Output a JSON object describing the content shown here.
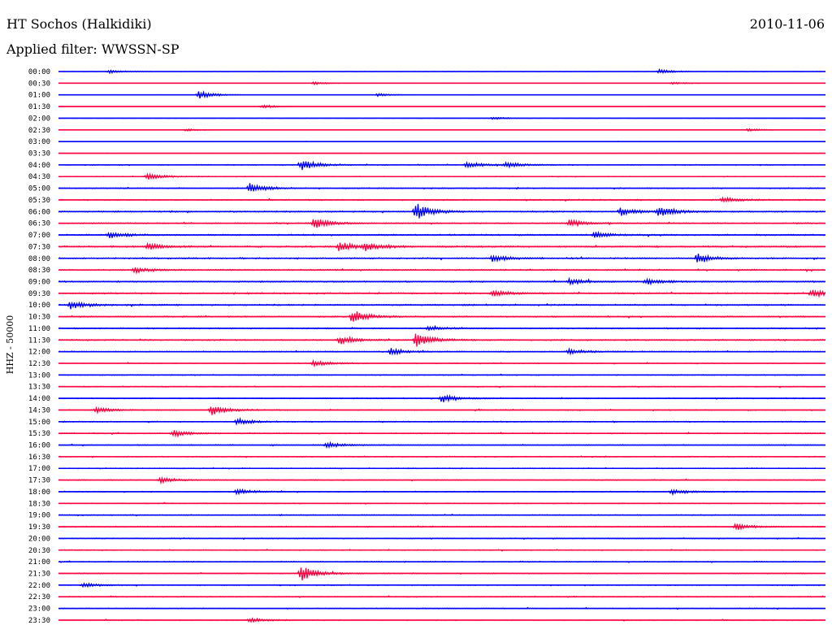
{
  "header": {
    "title": "HT Sochos (Halkidiki)",
    "date": "2010-11-06",
    "filter": "Applied filter: WWSSN-SP",
    "channel": "HHZ - 50000"
  },
  "colors": {
    "trace_a": "#0000ff",
    "trace_b": "#ff0040",
    "text": "#000000",
    "background": "#ffffff"
  },
  "chart_data": {
    "type": "line",
    "title": "HT Sochos (Halkidiki)",
    "subtitle": "Applied filter: WWSSN-SP",
    "ylabel": "HHZ - 50000",
    "row_labels": [
      "00:00",
      "00:30",
      "01:00",
      "01:30",
      "02:00",
      "02:30",
      "03:00",
      "03:30",
      "04:00",
      "04:30",
      "05:00",
      "05:30",
      "06:00",
      "06:30",
      "07:00",
      "07:30",
      "08:00",
      "08:30",
      "09:00",
      "09:30",
      "10:00",
      "10:30",
      "11:00",
      "11:30",
      "12:00",
      "12:30",
      "13:00",
      "13:30",
      "14:00",
      "14:30",
      "15:00",
      "15:30",
      "16:00",
      "16:30",
      "17:00",
      "17:30",
      "18:00",
      "18:30",
      "19:00",
      "19:30",
      "20:00",
      "20:30",
      "21:00",
      "21:30",
      "22:00",
      "22:30",
      "23:00",
      "23:30"
    ],
    "row_minutes": 30,
    "alternating_colors": [
      "#0000ff",
      "#ff0040"
    ],
    "noise_level": [
      0.1,
      0.1,
      0.12,
      0.08,
      0.1,
      0.1,
      0.1,
      0.15,
      0.4,
      0.3,
      0.45,
      0.5,
      0.6,
      0.55,
      0.6,
      0.65,
      0.65,
      0.55,
      0.6,
      0.6,
      0.6,
      0.55,
      0.5,
      0.55,
      0.5,
      0.4,
      0.4,
      0.4,
      0.45,
      0.45,
      0.45,
      0.45,
      0.4,
      0.4,
      0.4,
      0.4,
      0.4,
      0.4,
      0.4,
      0.4,
      0.4,
      0.4,
      0.4,
      0.4,
      0.4,
      0.4,
      0.4,
      0.4
    ],
    "events": [
      {
        "row": 0,
        "minute": 2,
        "amp": 0.5
      },
      {
        "row": 0,
        "minute": 23.5,
        "amp": 0.6
      },
      {
        "row": 1,
        "minute": 10,
        "amp": 0.4
      },
      {
        "row": 1,
        "minute": 24,
        "amp": 0.35
      },
      {
        "row": 2,
        "minute": 5.5,
        "amp": 1.2
      },
      {
        "row": 2,
        "minute": 12.5,
        "amp": 0.4
      },
      {
        "row": 3,
        "minute": 8,
        "amp": 0.5
      },
      {
        "row": 4,
        "minute": 17,
        "amp": 0.4
      },
      {
        "row": 5,
        "minute": 5,
        "amp": 0.35
      },
      {
        "row": 5,
        "minute": 27,
        "amp": 0.4
      },
      {
        "row": 8,
        "minute": 9.5,
        "amp": 1.6
      },
      {
        "row": 8,
        "minute": 16,
        "amp": 0.9
      },
      {
        "row": 8,
        "minute": 17.5,
        "amp": 0.8
      },
      {
        "row": 9,
        "minute": 3.5,
        "amp": 0.9
      },
      {
        "row": 10,
        "minute": 7.5,
        "amp": 1.5
      },
      {
        "row": 11,
        "minute": 26,
        "amp": 0.9
      },
      {
        "row": 12,
        "minute": 14,
        "amp": 2.5
      },
      {
        "row": 12,
        "minute": 22,
        "amp": 1.2
      },
      {
        "row": 12,
        "minute": 23.5,
        "amp": 1.6
      },
      {
        "row": 13,
        "minute": 10,
        "amp": 1.5
      },
      {
        "row": 13,
        "minute": 20,
        "amp": 1.0
      },
      {
        "row": 14,
        "minute": 2,
        "amp": 1.0
      },
      {
        "row": 14,
        "minute": 21,
        "amp": 0.9
      },
      {
        "row": 15,
        "minute": 3.5,
        "amp": 1.0
      },
      {
        "row": 15,
        "minute": 11,
        "amp": 1.4
      },
      {
        "row": 15,
        "minute": 12,
        "amp": 1.3
      },
      {
        "row": 16,
        "minute": 17,
        "amp": 1.0
      },
      {
        "row": 16,
        "minute": 25,
        "amp": 1.5
      },
      {
        "row": 17,
        "minute": 3,
        "amp": 0.8
      },
      {
        "row": 18,
        "minute": 20,
        "amp": 0.9
      },
      {
        "row": 18,
        "minute": 23,
        "amp": 0.8
      },
      {
        "row": 19,
        "minute": 17,
        "amp": 0.9
      },
      {
        "row": 19,
        "minute": 29.5,
        "amp": 1.2
      },
      {
        "row": 20,
        "minute": 0.5,
        "amp": 1.2
      },
      {
        "row": 21,
        "minute": 11.5,
        "amp": 2.0
      },
      {
        "row": 22,
        "minute": 14.5,
        "amp": 0.8
      },
      {
        "row": 23,
        "minute": 11,
        "amp": 1.2
      },
      {
        "row": 23,
        "minute": 14,
        "amp": 2.0
      },
      {
        "row": 24,
        "minute": 13,
        "amp": 1.0
      },
      {
        "row": 24,
        "minute": 20,
        "amp": 0.8
      },
      {
        "row": 25,
        "minute": 10,
        "amp": 0.8
      },
      {
        "row": 28,
        "minute": 15,
        "amp": 1.2
      },
      {
        "row": 29,
        "minute": 6,
        "amp": 1.5
      },
      {
        "row": 29,
        "minute": 1.5,
        "amp": 0.8
      },
      {
        "row": 30,
        "minute": 7,
        "amp": 1.0
      },
      {
        "row": 31,
        "minute": 4.5,
        "amp": 1.0
      },
      {
        "row": 32,
        "minute": 10.5,
        "amp": 0.8
      },
      {
        "row": 35,
        "minute": 4,
        "amp": 0.8
      },
      {
        "row": 36,
        "minute": 7,
        "amp": 0.8
      },
      {
        "row": 36,
        "minute": 24,
        "amp": 0.8
      },
      {
        "row": 39,
        "minute": 26.5,
        "amp": 1.0
      },
      {
        "row": 43,
        "minute": 9.5,
        "amp": 2.2
      },
      {
        "row": 44,
        "minute": 1,
        "amp": 0.6
      },
      {
        "row": 47,
        "minute": 7.5,
        "amp": 0.6
      }
    ]
  }
}
